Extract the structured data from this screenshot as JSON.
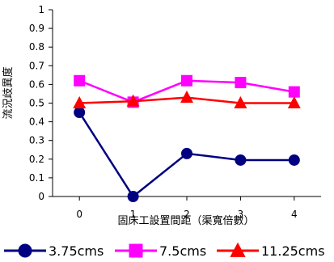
{
  "chart_data": {
    "type": "line",
    "xlabel": "固床工設置間距（渠寬倍數）",
    "ylabel": "流況歧異度",
    "x": [
      0,
      1,
      2,
      3,
      4
    ],
    "xlim": [
      -0.5,
      4.5
    ],
    "ylim": [
      0,
      1
    ],
    "xticks": [
      "0",
      "1",
      "2",
      "3",
      "4"
    ],
    "yticks": [
      "0",
      "0.1",
      "0.2",
      "0.3",
      "0.4",
      "0.5",
      "0.6",
      "0.7",
      "0.8",
      "0.9",
      "1"
    ],
    "grid": false,
    "legend": "bottom",
    "series": [
      {
        "name": "3.75cms",
        "values": [
          0.45,
          0.0,
          0.23,
          0.195,
          0.195
        ],
        "color": "#000080",
        "marker": "circle"
      },
      {
        "name": "7.5cms",
        "values": [
          0.62,
          0.505,
          0.62,
          0.61,
          0.56
        ],
        "color": "#ff00ff",
        "marker": "square"
      },
      {
        "name": "11.25cms",
        "values": [
          0.5,
          0.51,
          0.53,
          0.5,
          0.5
        ],
        "color": "#ff0000",
        "marker": "triangle"
      }
    ]
  }
}
